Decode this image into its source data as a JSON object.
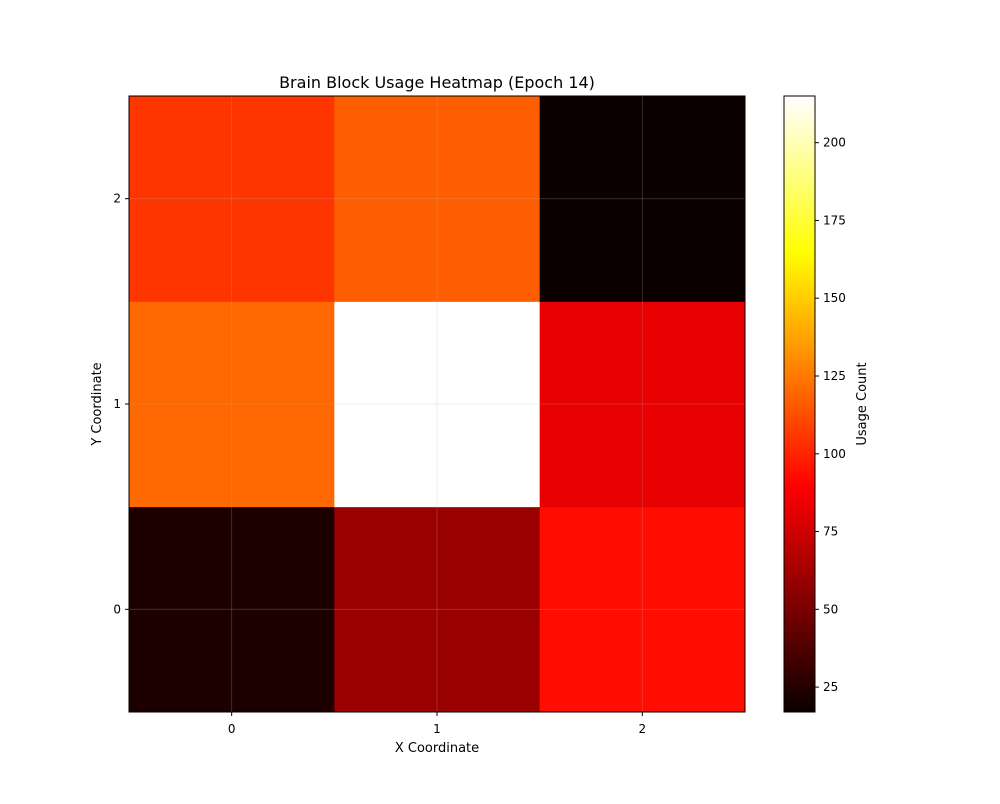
{
  "chart_data": {
    "type": "heatmap",
    "title": "Brain Block Usage Heatmap (Epoch 14)",
    "xlabel": "X Coordinate",
    "ylabel": "Y Coordinate",
    "x_categories": [
      "0",
      "1",
      "2"
    ],
    "y_categories": [
      "0",
      "1",
      "2"
    ],
    "values": [
      [
        22,
        58,
        93
      ],
      [
        120,
        215,
        80
      ],
      [
        105,
        117,
        17
      ]
    ],
    "colormap": "hot",
    "grid": true,
    "colorbar": {
      "label": "Usage Count",
      "range": [
        17,
        215
      ],
      "ticks": [
        25,
        50,
        75,
        100,
        125,
        150,
        175,
        200
      ]
    }
  }
}
